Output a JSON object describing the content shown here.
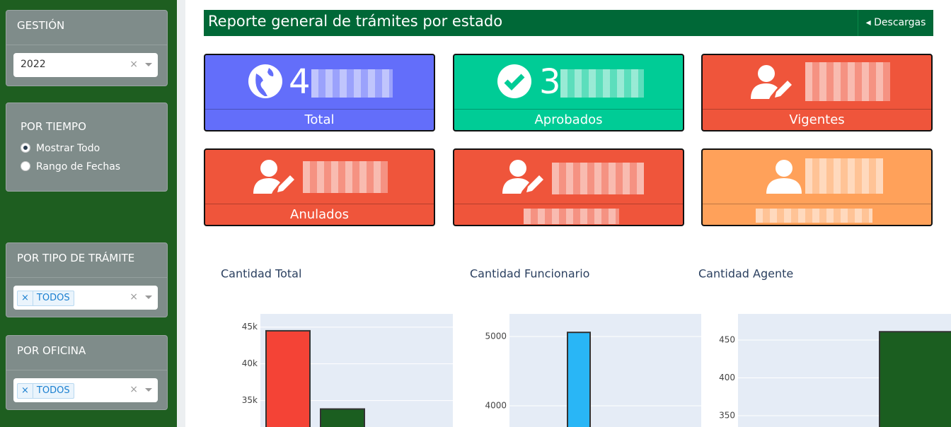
{
  "sidebar": {
    "gestion": {
      "title": "GESTIÓN",
      "value": "2022"
    },
    "por_tiempo": {
      "title": "POR TIEMPO",
      "options": [
        "Mostrar Todo",
        "Rango de Fechas"
      ]
    },
    "por_tipo": {
      "title": "POR TIPO DE TRÁMITE",
      "tag": "TODOS"
    },
    "por_oficina": {
      "title": "POR OFICINA",
      "tag": "TODOS"
    }
  },
  "header": {
    "title": "Reporte general de trámites por estado",
    "button": "Descargas"
  },
  "cards": [
    {
      "value_prefix": "4",
      "label": "Total"
    },
    {
      "value_prefix": "3",
      "label": "Aprobados"
    },
    {
      "label": "Vigentes"
    },
    {
      "label": "Anulados"
    },
    {},
    {}
  ],
  "charts": [
    {
      "type": "bar",
      "title": "Cantidad Total",
      "values": [
        44500,
        33850
      ],
      "colors": [
        "#f44336",
        "#1b5e20"
      ],
      "ylim": [
        31400,
        46800
      ],
      "yticks": [
        {
          "value": 35000,
          "label": "35k"
        },
        {
          "value": 40000,
          "label": "40k"
        },
        {
          "value": 45000,
          "label": "45k"
        }
      ],
      "grid": true
    },
    {
      "type": "bar",
      "title": "Cantidad Funcionario",
      "values": [
        5060
      ],
      "colors": [
        "#29b6f6"
      ],
      "ylim": [
        3694,
        5327
      ],
      "yticks": [
        4000,
        5000
      ],
      "grid": true
    },
    {
      "type": "bar",
      "title": "Cantidad Agente",
      "values": [
        461
      ],
      "colors": [
        "#1b5e20"
      ],
      "ylim": [
        335,
        484.6
      ],
      "yticks": [
        350,
        400,
        450
      ],
      "grid": true
    }
  ]
}
